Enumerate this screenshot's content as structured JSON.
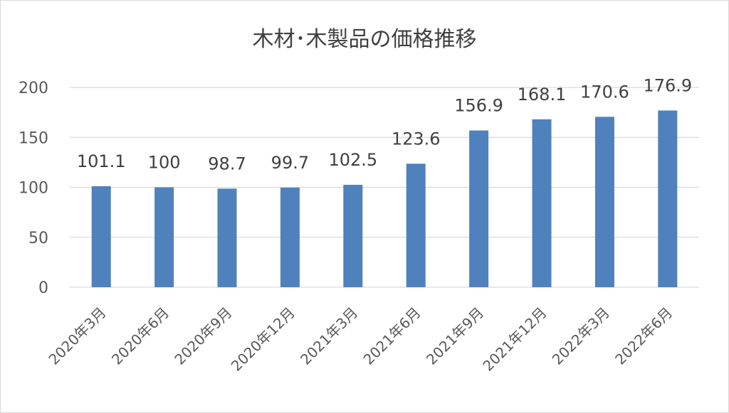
{
  "chart_data": {
    "type": "bar",
    "title": "木材･木製品の価格推移",
    "categories": [
      "2020年3月",
      "2020年6月",
      "2020年9月",
      "2020年12月",
      "2021年3月",
      "2021年6月",
      "2021年9月",
      "2021年12月",
      "2022年3月",
      "2022年6月"
    ],
    "values": [
      101.1,
      100,
      98.7,
      99.7,
      102.5,
      123.6,
      156.9,
      168.1,
      170.6,
      176.9
    ],
    "value_labels": [
      "101.1",
      "100",
      "98.7",
      "99.7",
      "102.5",
      "123.6",
      "156.9",
      "168.1",
      "170.6",
      "176.9"
    ],
    "yticks": [
      0,
      50,
      100,
      150,
      200
    ],
    "ylim": [
      0,
      200
    ],
    "grid": true,
    "bar_color": "#4f81bd",
    "gridline_color": "#d9d9d9"
  }
}
